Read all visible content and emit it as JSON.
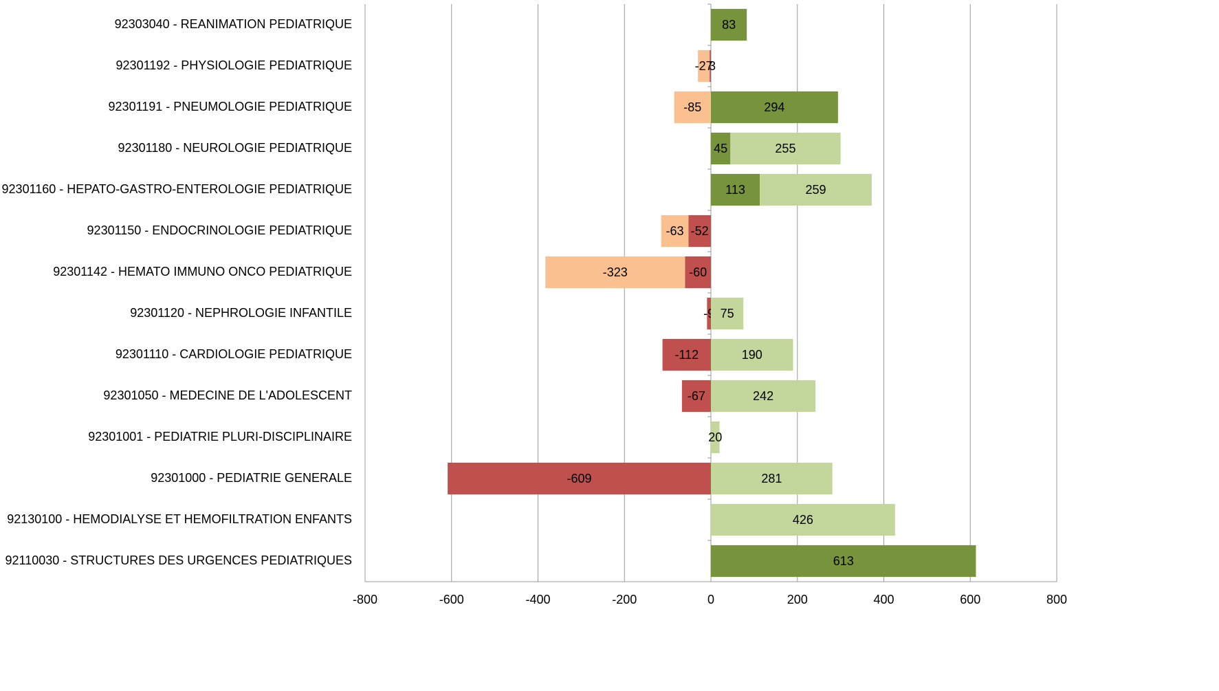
{
  "chart_data": {
    "type": "stacked_bar_horizontal",
    "categories": [
      "92303040 - REANIMATION PEDIATRIQUE",
      "92301192 - PHYSIOLOGIE PEDIATRIQUE",
      "92301191 - PNEUMOLOGIE PEDIATRIQUE",
      "92301180 - NEUROLOGIE PEDIATRIQUE",
      "92301160 - HEPATO-GASTRO-ENTEROLOGIE PEDIATRIQUE",
      "92301150 - ENDOCRINOLOGIE PEDIATRIQUE",
      "92301142 - HEMATO IMMUNO ONCO PEDIATRIQUE",
      "92301120 - NEPHROLOGIE INFANTILE",
      "92301110 - CARDIOLOGIE PEDIATRIQUE",
      "92301050 - MEDECINE DE L'ADOLESCENT",
      "92301001 - PEDIATRIE PLURI-DISCIPLINAIRE",
      "92301000 - PEDIATRIE GENERALE",
      "92130100 - HEMODIALYSE ET HEMOFILTRATION ENFANTS",
      "92110030 - STRUCTURES DES URGENCES PEDIATRIQUES"
    ],
    "series": [
      {
        "color": "#c0504d",
        "values": [
          null,
          -3,
          null,
          null,
          null,
          -52,
          -60,
          -9,
          -112,
          -67,
          null,
          -609,
          null,
          null
        ]
      },
      {
        "color": "#fac090",
        "values": [
          null,
          -27,
          -85,
          null,
          null,
          -63,
          -323,
          null,
          null,
          null,
          null,
          null,
          null,
          null
        ]
      },
      {
        "color": "#77933c",
        "values": [
          83,
          null,
          294,
          45,
          113,
          null,
          null,
          null,
          null,
          null,
          null,
          null,
          null,
          613
        ]
      },
      {
        "color": "#c3d69b",
        "values": [
          null,
          null,
          null,
          255,
          259,
          null,
          null,
          75,
          190,
          242,
          20,
          281,
          426,
          null
        ]
      }
    ],
    "xlim": [
      -800,
      800
    ],
    "xticks": [
      -800,
      -600,
      -400,
      -200,
      0,
      200,
      400,
      600,
      800
    ],
    "grid": true
  }
}
